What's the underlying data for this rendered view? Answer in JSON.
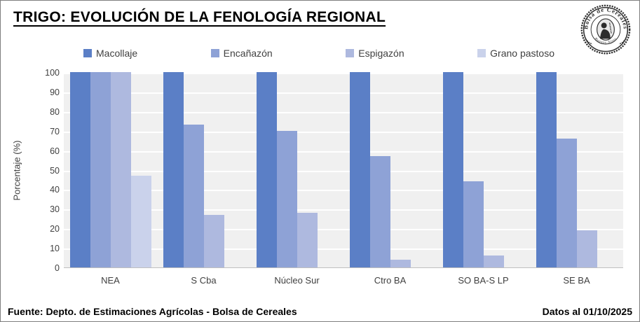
{
  "header": {
    "title": "TRIGO: EVOLUCIÓN DE LA FENOLOGÍA REGIONAL"
  },
  "logo": {
    "ring_text": "Bolsa de Cereales",
    "bottom_text": "Buenos Aires"
  },
  "footer": {
    "source": "Fuente: Depto. de Estimaciones Agrícolas - Bolsa de Cereales",
    "date_note": "Datos al 01/10/2025"
  },
  "chart_data": {
    "type": "bar",
    "title": "TRIGO: EVOLUCIÓN DE LA FENOLOGÍA REGIONAL",
    "xlabel": "",
    "ylabel": "Porcentaje (%)",
    "ylim": [
      0,
      100
    ],
    "ytick_step": 10,
    "grid": true,
    "grid_color": "#ffffff",
    "plot_background": "#f0f0f0",
    "legend_position": "top",
    "categories": [
      "NEA",
      "S Cba",
      "Núcleo Sur",
      "Ctro BA",
      "SO BA-S LP",
      "SE BA"
    ],
    "series": [
      {
        "name": "Macollaje",
        "color": "#5b7fc6",
        "values": [
          100,
          100,
          100,
          100,
          100,
          100
        ]
      },
      {
        "name": "Encañazón",
        "color": "#8ea2d6",
        "values": [
          100,
          73,
          70,
          57,
          44,
          66
        ]
      },
      {
        "name": "Espigazón",
        "color": "#aeb9df",
        "values": [
          100,
          27,
          28,
          4,
          6,
          19
        ]
      },
      {
        "name": "Grano pastoso",
        "color": "#cad2eb",
        "values": [
          47,
          0,
          0,
          0,
          0,
          0
        ]
      }
    ]
  }
}
